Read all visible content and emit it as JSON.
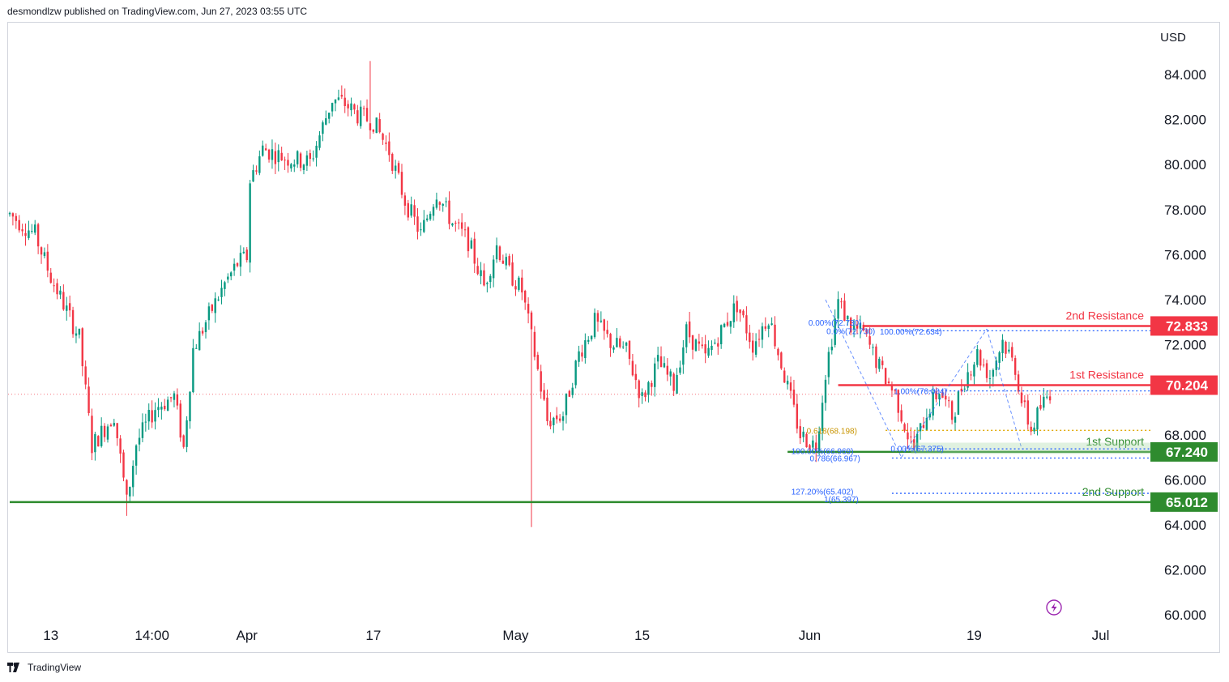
{
  "header": {
    "publish_info": "desmondlzw published on TradingView.com, Jun 27, 2023 03:55 UTC"
  },
  "footer": {
    "brand": "TradingView",
    "logo_icon": "tradingview-logo-icon"
  },
  "colors": {
    "up": "#089981",
    "down": "#f23645",
    "resistance": "#f23645",
    "support": "#2e8b2e",
    "fib_blue": "#2962ff",
    "fib_orange": "#e0a800",
    "price_line": "#f23645",
    "lightning": "#9c27b0"
  },
  "chart_data": {
    "type": "candlestick",
    "currency_label": "USD",
    "ylim": [
      59.8,
      86.0
    ],
    "y_ticks": [
      "84.000",
      "82.000",
      "80.000",
      "78.000",
      "76.000",
      "74.000",
      "72.000",
      "70.000",
      "68.000",
      "66.000",
      "64.000",
      "62.000",
      "60.000"
    ],
    "y_tick_values": [
      84,
      82,
      80,
      78,
      76,
      74,
      72,
      70,
      68,
      66,
      64,
      62,
      60
    ],
    "x_ticks": [
      "13",
      "14:00",
      "Apr",
      "17",
      "May",
      "15",
      "Jun",
      "19",
      "Jul"
    ],
    "x_tick_index": [
      13,
      45,
      75,
      115,
      160,
      200,
      253,
      305,
      345
    ],
    "bar_count": 362,
    "current_price": 69.8,
    "price_path": [
      [
        0,
        77.8
      ],
      [
        8,
        76.9
      ],
      [
        13,
        75.0
      ],
      [
        18,
        73.5
      ],
      [
        22,
        72.3
      ],
      [
        26,
        67.5
      ],
      [
        33,
        68.9
      ],
      [
        37,
        65.0
      ],
      [
        40,
        67.6
      ],
      [
        46,
        69.2
      ],
      [
        52,
        69.7
      ],
      [
        55,
        67.4
      ],
      [
        58,
        71.8
      ],
      [
        63,
        73.3
      ],
      [
        68,
        74.7
      ],
      [
        72,
        75.6
      ],
      [
        75,
        75.9
      ],
      [
        76,
        79.3
      ],
      [
        80,
        80.7
      ],
      [
        87,
        80.3
      ],
      [
        95,
        80.1
      ],
      [
        102,
        82.9
      ],
      [
        106,
        82.7
      ],
      [
        110,
        82.2
      ],
      [
        115,
        81.9
      ],
      [
        120,
        80.6
      ],
      [
        125,
        78.4
      ],
      [
        130,
        76.9
      ],
      [
        135,
        78.8
      ],
      [
        140,
        77.4
      ],
      [
        145,
        76.6
      ],
      [
        150,
        74.6
      ],
      [
        154,
        76.4
      ],
      [
        158,
        75.2
      ],
      [
        162,
        74.4
      ],
      [
        166,
        71.6
      ],
      [
        170,
        68.6
      ],
      [
        175,
        68.9
      ],
      [
        180,
        71.6
      ],
      [
        185,
        73.0
      ],
      [
        190,
        72.1
      ],
      [
        195,
        71.7
      ],
      [
        200,
        69.6
      ],
      [
        205,
        71.2
      ],
      [
        210,
        70.2
      ],
      [
        214,
        72.6
      ],
      [
        220,
        71.4
      ],
      [
        225,
        72.6
      ],
      [
        230,
        73.8
      ],
      [
        235,
        72.0
      ],
      [
        240,
        73.3
      ],
      [
        245,
        70.6
      ],
      [
        250,
        68.0
      ],
      [
        255,
        67.5
      ],
      [
        258,
        70.8
      ],
      [
        262,
        73.9
      ],
      [
        266,
        72.8
      ],
      [
        270,
        72.5
      ],
      [
        275,
        71.0
      ],
      [
        280,
        69.8
      ],
      [
        284,
        68.0
      ],
      [
        286,
        67.4
      ],
      [
        290,
        69.0
      ],
      [
        294,
        70.0
      ],
      [
        298,
        68.8
      ],
      [
        302,
        70.5
      ],
      [
        306,
        71.6
      ],
      [
        310,
        70.6
      ],
      [
        314,
        72.2
      ],
      [
        318,
        71.0
      ],
      [
        320,
        69.5
      ],
      [
        323,
        68.2
      ],
      [
        326,
        69.2
      ],
      [
        329,
        69.9
      ]
    ],
    "wicks": [
      {
        "index": 37,
        "low": 64.4
      },
      {
        "index": 165,
        "low": 63.9
      },
      {
        "index": 114,
        "high": 84.6
      }
    ],
    "levels": [
      {
        "kind": "resistance",
        "label": "2nd Resistance",
        "value": 72.833,
        "badge": "72.833",
        "from_index": 270
      },
      {
        "kind": "resistance",
        "label": "1st Resistance",
        "value": 70.204,
        "badge": "70.204",
        "from_index": 262
      },
      {
        "kind": "support",
        "label": "1st Support",
        "value": 67.24,
        "badge": "67.240",
        "from_index": 246
      },
      {
        "kind": "support",
        "label": "2nd Support",
        "value": 65.012,
        "badge": "65.012",
        "from_index": 0
      }
    ],
    "fib_labels": [
      {
        "text": "0.00%(72.730)",
        "value": 73.0,
        "index": 261,
        "color": "blue"
      },
      {
        "text": "0.0%(72.730)",
        "value": 72.62,
        "index": 266,
        "color": "blue"
      },
      {
        "text": "100.00%(72.634)",
        "value": 72.6,
        "index": 285,
        "color": "blue"
      },
      {
        "text": "1.00%(70.004)",
        "value": 69.95,
        "index": 288,
        "color": "blue"
      },
      {
        "text": "0.618(68.198)",
        "value": 68.198,
        "index": 260,
        "color": "orange"
      },
      {
        "text": "100.00%(66.969)",
        "value": 67.3,
        "index": 257,
        "color": "blue"
      },
      {
        "text": "0.00%(67.375)",
        "value": 67.4,
        "index": 287,
        "color": "blue"
      },
      {
        "text": "0.786(66.967)",
        "value": 66.967,
        "index": 261,
        "color": "blue"
      },
      {
        "text": "127.20%(65.402)",
        "value": 65.5,
        "index": 257,
        "color": "blue"
      },
      {
        "text": "1(65.397)",
        "value": 65.15,
        "index": 263,
        "color": "blue"
      }
    ],
    "dotted_lines": [
      {
        "value": 72.62,
        "from_index": 281,
        "color": "blue"
      },
      {
        "value": 69.95,
        "from_index": 287,
        "color": "blue"
      },
      {
        "value": 68.198,
        "from_index": 277,
        "color": "orange"
      },
      {
        "value": 67.375,
        "from_index": 283,
        "color": "blue"
      },
      {
        "value": 66.967,
        "from_index": 279,
        "color": "blue"
      },
      {
        "value": 65.4,
        "from_index": 279,
        "color": "blue"
      }
    ],
    "support_zone": {
      "from_index": 285,
      "top": 67.65,
      "bottom": 67.15
    },
    "fib_pattern": [
      [
        258,
        74.0
      ],
      [
        282,
        67.0
      ],
      [
        309,
        72.7
      ],
      [
        320,
        67.4
      ]
    ],
    "grid": false,
    "lightning_icon": "lightning-icon"
  }
}
